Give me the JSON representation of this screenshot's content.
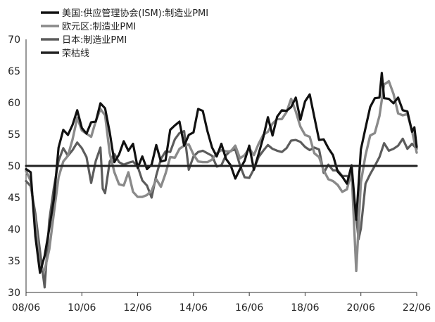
{
  "chart_data": {
    "type": "line",
    "title": "",
    "xlabel": "",
    "ylabel": "",
    "ylim": [
      30,
      70
    ],
    "yticks": [
      "30",
      "35",
      "40",
      "45",
      "50",
      "55",
      "60",
      "65",
      "70"
    ],
    "xticks": [
      "08/06",
      "10/06",
      "12/06",
      "14/06",
      "16/06",
      "18/06",
      "20/06",
      "22/06"
    ],
    "legend_position": "top-left",
    "grid": false,
    "series": [
      {
        "name": "美国:供应管理协会(ISM):制造业PMI",
        "color": "#111111",
        "width": 3.2,
        "points": [
          [
            "08/06",
            49.5
          ],
          [
            "08/08",
            49.0
          ],
          [
            "08/10",
            38.9
          ],
          [
            "08/12",
            33.1
          ],
          [
            "09/02",
            35.8
          ],
          [
            "09/04",
            40.1
          ],
          [
            "09/06",
            44.8
          ],
          [
            "09/08",
            52.9
          ],
          [
            "09/10",
            55.7
          ],
          [
            "09/12",
            54.9
          ],
          [
            "10/02",
            56.5
          ],
          [
            "10/04",
            58.8
          ],
          [
            "10/06",
            56.0
          ],
          [
            "10/08",
            55.1
          ],
          [
            "10/10",
            56.9
          ],
          [
            "10/12",
            57.0
          ],
          [
            "11/02",
            59.9
          ],
          [
            "11/04",
            59.1
          ],
          [
            "11/06",
            55.3
          ],
          [
            "11/08",
            50.6
          ],
          [
            "11/10",
            51.8
          ],
          [
            "11/12",
            53.9
          ],
          [
            "12/02",
            52.4
          ],
          [
            "12/04",
            53.5
          ],
          [
            "12/06",
            49.7
          ],
          [
            "12/08",
            51.5
          ],
          [
            "12/10",
            49.5
          ],
          [
            "12/12",
            50.2
          ],
          [
            "13/02",
            53.3
          ],
          [
            "13/04",
            50.7
          ],
          [
            "13/06",
            50.9
          ],
          [
            "13/08",
            55.7
          ],
          [
            "13/10",
            56.4
          ],
          [
            "13/12",
            57.0
          ],
          [
            "14/02",
            53.2
          ],
          [
            "14/04",
            54.9
          ],
          [
            "14/06",
            55.3
          ],
          [
            "14/08",
            59.0
          ],
          [
            "14/10",
            58.7
          ],
          [
            "14/12",
            55.5
          ],
          [
            "15/02",
            52.9
          ],
          [
            "15/04",
            51.5
          ],
          [
            "15/06",
            53.5
          ],
          [
            "15/08",
            51.1
          ],
          [
            "15/10",
            50.1
          ],
          [
            "15/12",
            48.0
          ],
          [
            "16/02",
            49.5
          ],
          [
            "16/04",
            50.8
          ],
          [
            "16/06",
            53.2
          ],
          [
            "16/08",
            49.4
          ],
          [
            "16/10",
            51.9
          ],
          [
            "16/12",
            54.5
          ],
          [
            "17/02",
            57.7
          ],
          [
            "17/04",
            54.8
          ],
          [
            "17/06",
            57.8
          ],
          [
            "17/08",
            58.8
          ],
          [
            "17/10",
            58.7
          ],
          [
            "17/12",
            59.3
          ],
          [
            "18/02",
            60.8
          ],
          [
            "18/04",
            57.3
          ],
          [
            "18/06",
            60.2
          ],
          [
            "18/08",
            61.3
          ],
          [
            "18/10",
            57.7
          ],
          [
            "18/12",
            54.1
          ],
          [
            "19/02",
            54.2
          ],
          [
            "19/04",
            52.8
          ],
          [
            "19/06",
            51.7
          ],
          [
            "19/08",
            49.1
          ],
          [
            "19/10",
            48.3
          ],
          [
            "19/12",
            47.2
          ],
          [
            "20/02",
            50.1
          ],
          [
            "20/04",
            41.5
          ],
          [
            "20/06",
            52.6
          ],
          [
            "20/08",
            56.0
          ],
          [
            "20/10",
            59.3
          ],
          [
            "20/12",
            60.7
          ],
          [
            "21/02",
            60.8
          ],
          [
            "21/03",
            64.7
          ],
          [
            "21/04",
            60.7
          ],
          [
            "21/06",
            60.6
          ],
          [
            "21/08",
            59.9
          ],
          [
            "21/10",
            60.8
          ],
          [
            "21/12",
            58.8
          ],
          [
            "22/02",
            58.6
          ],
          [
            "22/04",
            55.4
          ],
          [
            "22/05",
            56.1
          ],
          [
            "22/06",
            53.0
          ]
        ]
      },
      {
        "name": "欧元区:制造业PMI",
        "color": "#8a8a8a",
        "width": 3.4,
        "points": [
          [
            "08/06",
            49.2
          ],
          [
            "08/08",
            47.6
          ],
          [
            "08/10",
            41.1
          ],
          [
            "08/12",
            33.9
          ],
          [
            "09/02",
            33.5
          ],
          [
            "09/04",
            36.8
          ],
          [
            "09/06",
            42.6
          ],
          [
            "09/08",
            48.2
          ],
          [
            "09/10",
            50.7
          ],
          [
            "09/12",
            51.6
          ],
          [
            "10/02",
            54.2
          ],
          [
            "10/04",
            57.6
          ],
          [
            "10/06",
            55.6
          ],
          [
            "10/08",
            55.1
          ],
          [
            "10/10",
            54.6
          ],
          [
            "10/12",
            57.1
          ],
          [
            "11/02",
            59.0
          ],
          [
            "11/04",
            58.0
          ],
          [
            "11/06",
            52.0
          ],
          [
            "11/08",
            49.0
          ],
          [
            "11/10",
            47.1
          ],
          [
            "11/12",
            46.9
          ],
          [
            "12/02",
            49.0
          ],
          [
            "12/04",
            45.9
          ],
          [
            "12/06",
            45.1
          ],
          [
            "12/08",
            45.1
          ],
          [
            "12/10",
            45.4
          ],
          [
            "12/12",
            46.1
          ],
          [
            "13/02",
            47.9
          ],
          [
            "13/04",
            46.7
          ],
          [
            "13/06",
            48.8
          ],
          [
            "13/08",
            51.4
          ],
          [
            "13/10",
            51.3
          ],
          [
            "13/12",
            52.7
          ],
          [
            "14/02",
            53.2
          ],
          [
            "14/04",
            53.4
          ],
          [
            "14/06",
            51.8
          ],
          [
            "14/08",
            50.7
          ],
          [
            "14/10",
            50.6
          ],
          [
            "14/12",
            50.6
          ],
          [
            "15/02",
            51.0
          ],
          [
            "15/04",
            52.0
          ],
          [
            "15/06",
            52.5
          ],
          [
            "15/08",
            52.3
          ],
          [
            "15/10",
            52.3
          ],
          [
            "15/12",
            53.2
          ],
          [
            "16/02",
            51.2
          ],
          [
            "16/04",
            51.7
          ],
          [
            "16/06",
            52.8
          ],
          [
            "16/08",
            51.7
          ],
          [
            "16/10",
            53.5
          ],
          [
            "16/12",
            54.9
          ],
          [
            "17/02",
            55.4
          ],
          [
            "17/04",
            56.7
          ],
          [
            "17/06",
            57.4
          ],
          [
            "17/08",
            57.4
          ],
          [
            "17/10",
            58.5
          ],
          [
            "17/12",
            60.6
          ],
          [
            "18/02",
            58.6
          ],
          [
            "18/04",
            56.2
          ],
          [
            "18/06",
            54.9
          ],
          [
            "18/08",
            54.6
          ],
          [
            "18/10",
            52.0
          ],
          [
            "18/12",
            51.4
          ],
          [
            "19/02",
            49.3
          ],
          [
            "19/04",
            47.9
          ],
          [
            "19/06",
            47.6
          ],
          [
            "19/08",
            47.0
          ],
          [
            "19/10",
            45.9
          ],
          [
            "19/12",
            46.3
          ],
          [
            "20/02",
            49.2
          ],
          [
            "20/04",
            33.4
          ],
          [
            "20/06",
            47.4
          ],
          [
            "20/08",
            51.7
          ],
          [
            "20/10",
            54.8
          ],
          [
            "20/12",
            55.2
          ],
          [
            "21/02",
            57.9
          ],
          [
            "21/04",
            62.9
          ],
          [
            "21/05",
            63.1
          ],
          [
            "21/06",
            63.4
          ],
          [
            "21/08",
            61.4
          ],
          [
            "21/10",
            58.3
          ],
          [
            "21/12",
            58.0
          ],
          [
            "22/02",
            58.2
          ],
          [
            "22/04",
            55.5
          ],
          [
            "22/06",
            52.1
          ]
        ]
      },
      {
        "name": "日本:制造业PMI",
        "color": "#5c5c5c",
        "width": 3.2,
        "points": [
          [
            "08/06",
            47.6
          ],
          [
            "08/08",
            46.8
          ],
          [
            "08/10",
            42.5
          ],
          [
            "08/12",
            36.6
          ],
          [
            "09/02",
            30.8
          ],
          [
            "09/04",
            41.4
          ],
          [
            "09/06",
            46.6
          ],
          [
            "09/08",
            50.8
          ],
          [
            "09/10",
            52.8
          ],
          [
            "09/12",
            51.6
          ],
          [
            "10/02",
            52.5
          ],
          [
            "10/04",
            53.7
          ],
          [
            "10/06",
            52.8
          ],
          [
            "10/08",
            51.4
          ],
          [
            "10/10",
            47.3
          ],
          [
            "10/12",
            50.8
          ],
          [
            "11/02",
            52.9
          ],
          [
            "11/03",
            46.4
          ],
          [
            "11/04",
            45.7
          ],
          [
            "11/06",
            50.7
          ],
          [
            "11/08",
            51.9
          ],
          [
            "11/10",
            50.6
          ],
          [
            "11/12",
            50.2
          ],
          [
            "12/02",
            50.5
          ],
          [
            "12/04",
            50.7
          ],
          [
            "12/06",
            49.9
          ],
          [
            "12/08",
            47.7
          ],
          [
            "12/10",
            46.9
          ],
          [
            "12/12",
            45.0
          ],
          [
            "13/02",
            48.5
          ],
          [
            "13/04",
            51.1
          ],
          [
            "13/06",
            52.3
          ],
          [
            "13/08",
            52.2
          ],
          [
            "13/10",
            54.2
          ],
          [
            "13/12",
            55.2
          ],
          [
            "14/02",
            55.5
          ],
          [
            "14/04",
            49.4
          ],
          [
            "14/06",
            51.5
          ],
          [
            "14/08",
            52.2
          ],
          [
            "14/10",
            52.4
          ],
          [
            "14/12",
            52.0
          ],
          [
            "15/02",
            51.6
          ],
          [
            "15/04",
            49.9
          ],
          [
            "15/06",
            50.1
          ],
          [
            "15/08",
            51.7
          ],
          [
            "15/10",
            52.4
          ],
          [
            "15/12",
            52.6
          ],
          [
            "16/02",
            50.1
          ],
          [
            "16/04",
            48.2
          ],
          [
            "16/06",
            48.1
          ],
          [
            "16/08",
            49.5
          ],
          [
            "16/10",
            51.4
          ],
          [
            "16/12",
            52.4
          ],
          [
            "17/02",
            53.3
          ],
          [
            "17/04",
            52.7
          ],
          [
            "17/06",
            52.4
          ],
          [
            "17/08",
            52.2
          ],
          [
            "17/10",
            52.8
          ],
          [
            "17/12",
            54.0
          ],
          [
            "18/02",
            54.1
          ],
          [
            "18/04",
            53.8
          ],
          [
            "18/06",
            53.0
          ],
          [
            "18/08",
            52.5
          ],
          [
            "18/10",
            52.9
          ],
          [
            "18/12",
            52.6
          ],
          [
            "19/02",
            48.9
          ],
          [
            "19/04",
            50.2
          ],
          [
            "19/06",
            49.3
          ],
          [
            "19/08",
            49.3
          ],
          [
            "19/10",
            48.4
          ],
          [
            "19/12",
            48.4
          ],
          [
            "20/02",
            47.8
          ],
          [
            "20/04",
            41.9
          ],
          [
            "20/05",
            38.4
          ],
          [
            "20/06",
            40.1
          ],
          [
            "20/08",
            47.2
          ],
          [
            "20/10",
            48.7
          ],
          [
            "20/12",
            50.0
          ],
          [
            "21/02",
            51.4
          ],
          [
            "21/04",
            53.6
          ],
          [
            "21/06",
            52.4
          ],
          [
            "21/08",
            52.7
          ],
          [
            "21/10",
            53.2
          ],
          [
            "21/12",
            54.3
          ],
          [
            "22/02",
            52.7
          ],
          [
            "22/04",
            53.5
          ],
          [
            "22/06",
            52.7
          ]
        ]
      },
      {
        "name": "荣枯线",
        "color": "#222222",
        "width": 3,
        "points": [
          [
            "08/06",
            50
          ],
          [
            "22/06",
            50
          ]
        ]
      }
    ]
  }
}
